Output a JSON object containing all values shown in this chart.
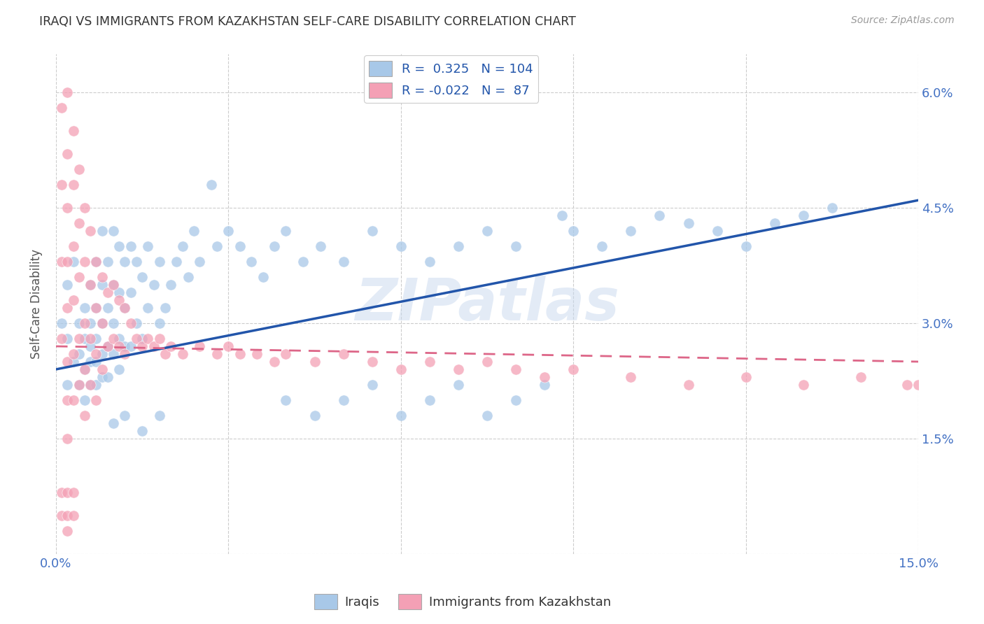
{
  "title": "IRAQI VS IMMIGRANTS FROM KAZAKHSTAN SELF-CARE DISABILITY CORRELATION CHART",
  "source": "Source: ZipAtlas.com",
  "ylabel": "Self-Care Disability",
  "xlim": [
    0.0,
    0.15
  ],
  "ylim": [
    0.0,
    0.065
  ],
  "xticks": [
    0.0,
    0.03,
    0.06,
    0.09,
    0.12,
    0.15
  ],
  "xtick_labels": [
    "0.0%",
    "",
    "",
    "",
    "",
    "15.0%"
  ],
  "yticks_right": [
    0.0,
    0.015,
    0.03,
    0.045,
    0.06
  ],
  "ytick_labels_right": [
    "",
    "1.5%",
    "3.0%",
    "4.5%",
    "6.0%"
  ],
  "legend_label1": "Iraqis",
  "legend_label2": "Immigrants from Kazakhstan",
  "color_blue": "#a8c8e8",
  "color_pink": "#f4a0b5",
  "line_color_blue": "#2255aa",
  "line_color_pink": "#dd6688",
  "watermark": "ZIPatlas",
  "background_color": "#ffffff",
  "grid_color": "#cccccc",
  "axis_color": "#4472c4",
  "blue_line_x0": 0.0,
  "blue_line_y0": 0.024,
  "blue_line_x1": 0.15,
  "blue_line_y1": 0.046,
  "pink_line_x0": 0.0,
  "pink_line_y0": 0.027,
  "pink_line_x1": 0.15,
  "pink_line_y1": 0.025,
  "iraqi_x": [
    0.001,
    0.002,
    0.002,
    0.002,
    0.003,
    0.003,
    0.004,
    0.004,
    0.004,
    0.005,
    0.005,
    0.005,
    0.005,
    0.006,
    0.006,
    0.006,
    0.006,
    0.006,
    0.007,
    0.007,
    0.007,
    0.007,
    0.007,
    0.008,
    0.008,
    0.008,
    0.008,
    0.008,
    0.009,
    0.009,
    0.009,
    0.009,
    0.01,
    0.01,
    0.01,
    0.01,
    0.011,
    0.011,
    0.011,
    0.011,
    0.012,
    0.012,
    0.012,
    0.013,
    0.013,
    0.013,
    0.014,
    0.014,
    0.015,
    0.015,
    0.016,
    0.016,
    0.017,
    0.018,
    0.018,
    0.019,
    0.02,
    0.021,
    0.022,
    0.023,
    0.024,
    0.025,
    0.027,
    0.028,
    0.03,
    0.032,
    0.034,
    0.036,
    0.038,
    0.04,
    0.043,
    0.046,
    0.05,
    0.055,
    0.06,
    0.065,
    0.07,
    0.075,
    0.08,
    0.088,
    0.09,
    0.095,
    0.1,
    0.105,
    0.11,
    0.115,
    0.12,
    0.125,
    0.13,
    0.135,
    0.04,
    0.045,
    0.05,
    0.055,
    0.06,
    0.065,
    0.07,
    0.075,
    0.08,
    0.085,
    0.01,
    0.012,
    0.015,
    0.018
  ],
  "iraqi_y": [
    0.03,
    0.035,
    0.028,
    0.022,
    0.038,
    0.025,
    0.03,
    0.022,
    0.026,
    0.032,
    0.028,
    0.024,
    0.02,
    0.035,
    0.03,
    0.025,
    0.022,
    0.027,
    0.038,
    0.032,
    0.028,
    0.025,
    0.022,
    0.042,
    0.035,
    0.03,
    0.026,
    0.023,
    0.038,
    0.032,
    0.027,
    0.023,
    0.042,
    0.035,
    0.03,
    0.026,
    0.04,
    0.034,
    0.028,
    0.024,
    0.038,
    0.032,
    0.027,
    0.04,
    0.034,
    0.027,
    0.038,
    0.03,
    0.036,
    0.028,
    0.04,
    0.032,
    0.035,
    0.038,
    0.03,
    0.032,
    0.035,
    0.038,
    0.04,
    0.036,
    0.042,
    0.038,
    0.048,
    0.04,
    0.042,
    0.04,
    0.038,
    0.036,
    0.04,
    0.042,
    0.038,
    0.04,
    0.038,
    0.042,
    0.04,
    0.038,
    0.04,
    0.042,
    0.04,
    0.044,
    0.042,
    0.04,
    0.042,
    0.044,
    0.043,
    0.042,
    0.04,
    0.043,
    0.044,
    0.045,
    0.02,
    0.018,
    0.02,
    0.022,
    0.018,
    0.02,
    0.022,
    0.018,
    0.02,
    0.022,
    0.017,
    0.018,
    0.016,
    0.018
  ],
  "kaz_x": [
    0.001,
    0.001,
    0.001,
    0.001,
    0.002,
    0.002,
    0.002,
    0.002,
    0.002,
    0.002,
    0.002,
    0.002,
    0.003,
    0.003,
    0.003,
    0.003,
    0.003,
    0.003,
    0.004,
    0.004,
    0.004,
    0.004,
    0.004,
    0.005,
    0.005,
    0.005,
    0.005,
    0.005,
    0.006,
    0.006,
    0.006,
    0.006,
    0.007,
    0.007,
    0.007,
    0.007,
    0.008,
    0.008,
    0.008,
    0.009,
    0.009,
    0.01,
    0.01,
    0.011,
    0.011,
    0.012,
    0.012,
    0.013,
    0.014,
    0.015,
    0.016,
    0.017,
    0.018,
    0.019,
    0.02,
    0.022,
    0.025,
    0.028,
    0.03,
    0.032,
    0.035,
    0.038,
    0.04,
    0.045,
    0.05,
    0.055,
    0.06,
    0.065,
    0.07,
    0.075,
    0.08,
    0.085,
    0.09,
    0.1,
    0.11,
    0.12,
    0.13,
    0.14,
    0.148,
    0.15,
    0.001,
    0.001,
    0.002,
    0.002,
    0.002,
    0.003,
    0.003
  ],
  "kaz_y": [
    0.058,
    0.048,
    0.038,
    0.028,
    0.06,
    0.052,
    0.045,
    0.038,
    0.032,
    0.025,
    0.02,
    0.015,
    0.055,
    0.048,
    0.04,
    0.033,
    0.026,
    0.02,
    0.05,
    0.043,
    0.036,
    0.028,
    0.022,
    0.045,
    0.038,
    0.03,
    0.024,
    0.018,
    0.042,
    0.035,
    0.028,
    0.022,
    0.038,
    0.032,
    0.026,
    0.02,
    0.036,
    0.03,
    0.024,
    0.034,
    0.027,
    0.035,
    0.028,
    0.033,
    0.027,
    0.032,
    0.026,
    0.03,
    0.028,
    0.027,
    0.028,
    0.027,
    0.028,
    0.026,
    0.027,
    0.026,
    0.027,
    0.026,
    0.027,
    0.026,
    0.026,
    0.025,
    0.026,
    0.025,
    0.026,
    0.025,
    0.024,
    0.025,
    0.024,
    0.025,
    0.024,
    0.023,
    0.024,
    0.023,
    0.022,
    0.023,
    0.022,
    0.023,
    0.022,
    0.022,
    0.008,
    0.005,
    0.008,
    0.005,
    0.003,
    0.008,
    0.005
  ]
}
